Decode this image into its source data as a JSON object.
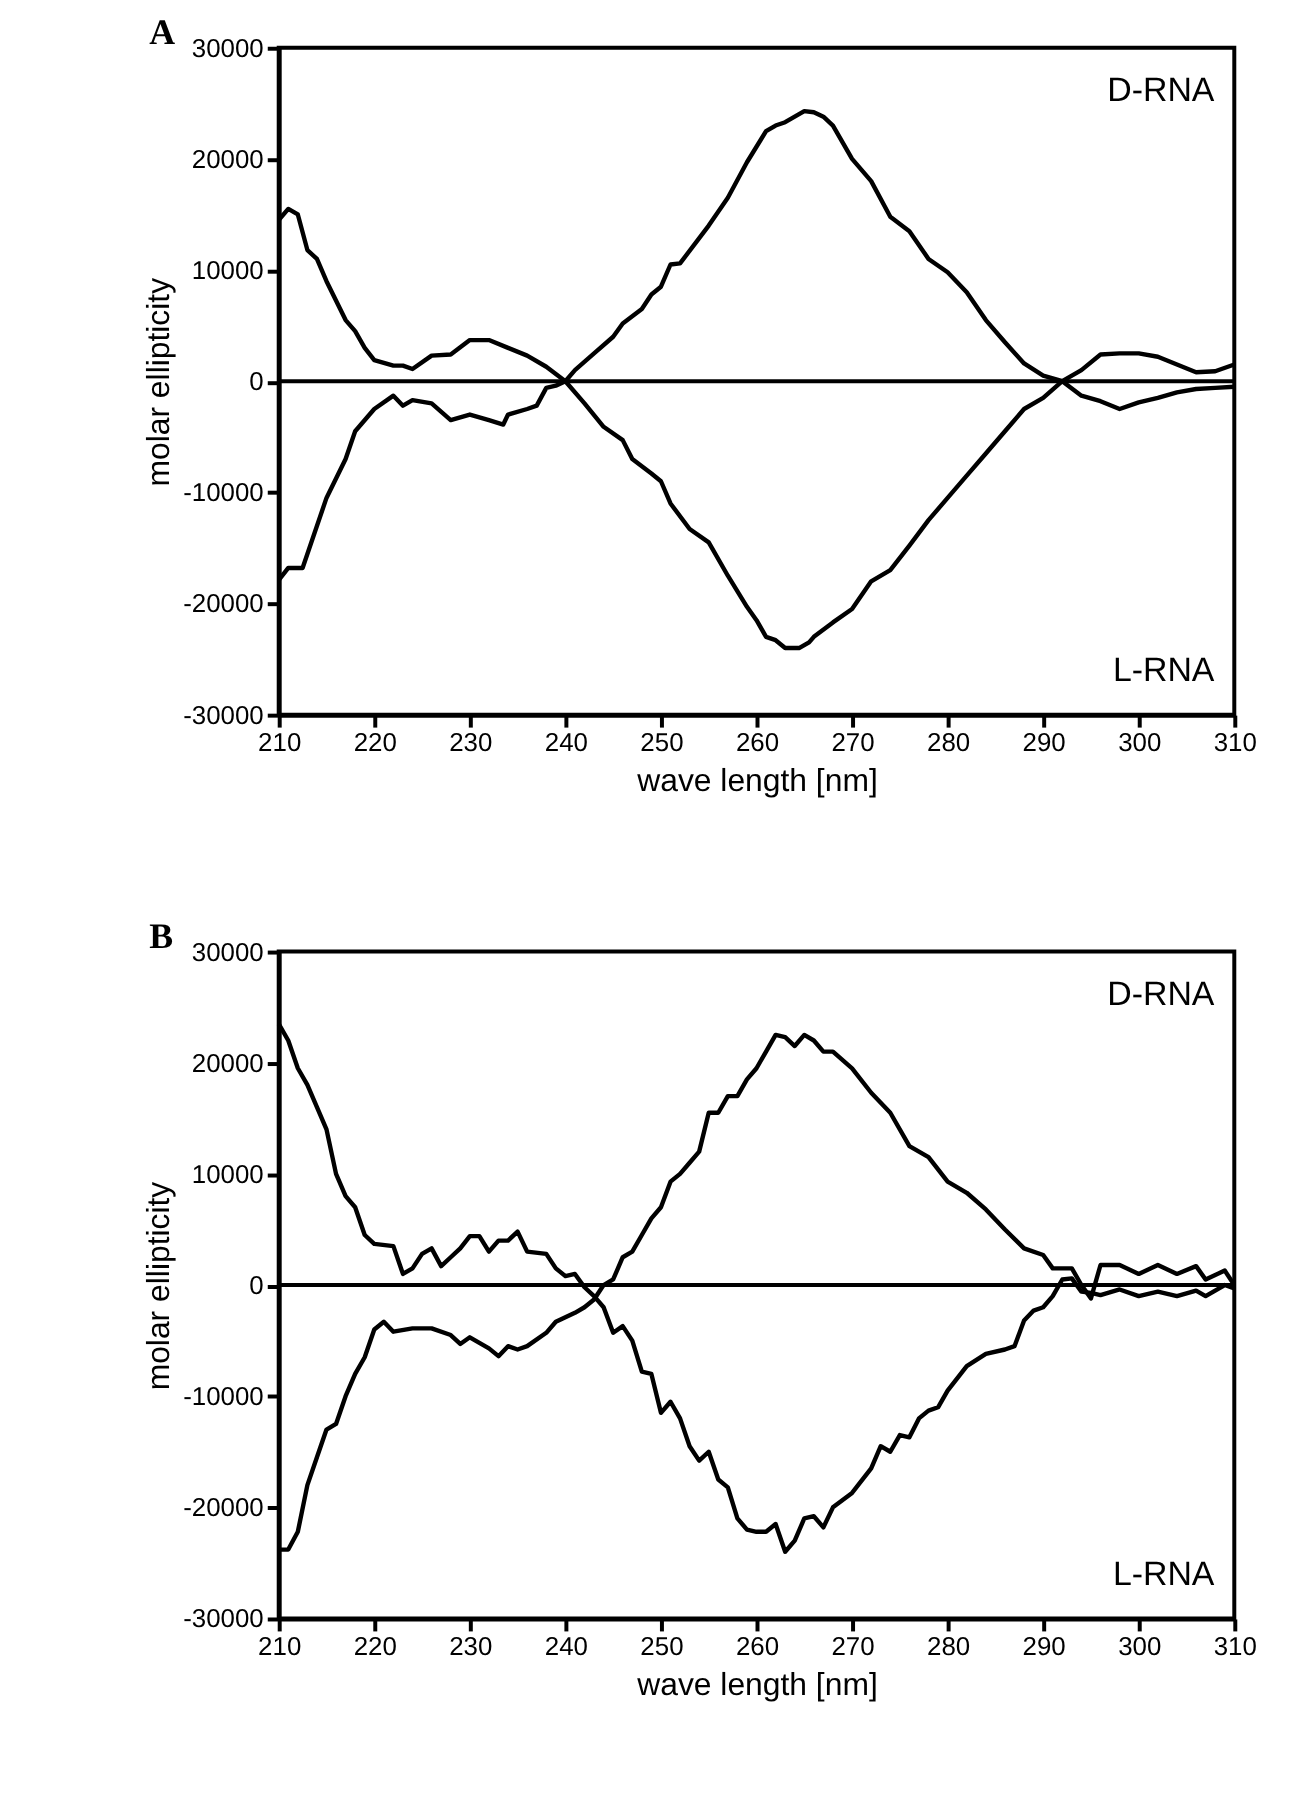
{
  "chart_data": [
    {
      "type": "line",
      "title": "A",
      "xlabel": "wave length [nm]",
      "ylabel": "molar ellipticity",
      "xlim": [
        210,
        310
      ],
      "xticks": [
        210,
        220,
        230,
        240,
        250,
        260,
        270,
        280,
        290,
        300,
        310
      ],
      "ylim": [
        -30000,
        30000
      ],
      "yticks": [
        -30000,
        -20000,
        -10000,
        0,
        10000,
        20000,
        30000
      ],
      "grid": false,
      "legend": false,
      "marker": "none",
      "line_style": "solid",
      "ref_lines": [
        {
          "axis": "y",
          "value": 0,
          "color": "#000000"
        }
      ],
      "annotations": [
        "D-RNA",
        "L-RNA"
      ],
      "series": [
        {
          "color": "#000000",
          "x": [
            210,
            211,
            212.5,
            215,
            217,
            218,
            220,
            222,
            223,
            224,
            226,
            228,
            230,
            232,
            233.5,
            234,
            236,
            237,
            238,
            239,
            240,
            241,
            243,
            245,
            246,
            248,
            249,
            250,
            251,
            252,
            255,
            257,
            259,
            261,
            262,
            263,
            265,
            266,
            267,
            268,
            270,
            272,
            274,
            276,
            278,
            280,
            282,
            284,
            286,
            288,
            290,
            292,
            294,
            296,
            298,
            300,
            302,
            304,
            306,
            308,
            310
          ],
          "values": [
            -17900,
            -16800,
            -16800,
            -10500,
            -7000,
            -4500,
            -2500,
            -1300,
            -2200,
            -1700,
            -2000,
            -3500,
            -3000,
            -3500,
            -3900,
            -3000,
            -2500,
            -2200,
            -600,
            -400,
            0,
            1000,
            2500,
            4000,
            5200,
            6500,
            7800,
            8500,
            10500,
            10600,
            14000,
            16500,
            19700,
            22500,
            23000,
            23300,
            24300,
            24200,
            23800,
            23000,
            20000,
            18000,
            14800,
            13500,
            11000,
            9800,
            8000,
            5500,
            3500,
            1600,
            500,
            0,
            -1300,
            -1800,
            -2500,
            -1900,
            -1500,
            -1000,
            -700,
            -600,
            -500
          ]
        },
        {
          "color": "#000000",
          "x": [
            210,
            211,
            212,
            213,
            214,
            215,
            217,
            218,
            219,
            220,
            222,
            223,
            224,
            226,
            228,
            230,
            232,
            234,
            236,
            238,
            240,
            242,
            244,
            246,
            247,
            249,
            250,
            251,
            253,
            255,
            257,
            259,
            260,
            261,
            262,
            263,
            264.5,
            265.5,
            266,
            268,
            270,
            272,
            274,
            276,
            278,
            280,
            282,
            284,
            286,
            288,
            290,
            292,
            294,
            296,
            298,
            300,
            302,
            304,
            306,
            308,
            310
          ],
          "values": [
            14500,
            15500,
            15000,
            11800,
            11000,
            9000,
            5500,
            4500,
            3000,
            1900,
            1400,
            1400,
            1100,
            2300,
            2400,
            3700,
            3700,
            3000,
            2300,
            1300,
            0,
            -2000,
            -4100,
            -5300,
            -7000,
            -8300,
            -9000,
            -11000,
            -13300,
            -14500,
            -17500,
            -20300,
            -21500,
            -23000,
            -23300,
            -24000,
            -24000,
            -23500,
            -23000,
            -21700,
            -20500,
            -18000,
            -17000,
            -14800,
            -12500,
            -10500,
            -8500,
            -6500,
            -4500,
            -2500,
            -1500,
            0,
            1000,
            2400,
            2500,
            2500,
            2200,
            1500,
            800,
            900,
            1500
          ]
        }
      ]
    },
    {
      "type": "line",
      "title": "B",
      "xlabel": "wave length [nm]",
      "ylabel": "molar ellipticity",
      "xlim": [
        210,
        310
      ],
      "xticks": [
        210,
        220,
        230,
        240,
        250,
        260,
        270,
        280,
        290,
        300,
        310
      ],
      "ylim": [
        -30000,
        30000
      ],
      "yticks": [
        -30000,
        -20000,
        -10000,
        0,
        10000,
        20000,
        30000
      ],
      "grid": false,
      "legend": false,
      "marker": "none",
      "line_style": "solid",
      "ref_lines": [
        {
          "axis": "y",
          "value": 0,
          "color": "#000000"
        }
      ],
      "annotations": [
        "D-RNA",
        "L-RNA"
      ],
      "series": [
        {
          "color": "#000000",
          "x": [
            210,
            211,
            212,
            213,
            214,
            215,
            216,
            217,
            218,
            219,
            220,
            221,
            222,
            224,
            226,
            228,
            229,
            230,
            232,
            233,
            234,
            235,
            236,
            238,
            239,
            241,
            242,
            243,
            244,
            245,
            246,
            247,
            248,
            249,
            250,
            251,
            252,
            253,
            254,
            255,
            256,
            257,
            258,
            259,
            260,
            261,
            262,
            263,
            264,
            265,
            266,
            267,
            268,
            270,
            272,
            274,
            276,
            278,
            280,
            282,
            284,
            286,
            288,
            290,
            291,
            293,
            294,
            295,
            296,
            298,
            300,
            302,
            304,
            306,
            307,
            309,
            310
          ],
          "values": [
            -23800,
            -23800,
            -22200,
            -18000,
            -15500,
            -13000,
            -12500,
            -10000,
            -8000,
            -6500,
            -4000,
            -3300,
            -4200,
            -3900,
            -3900,
            -4500,
            -5300,
            -4700,
            -5700,
            -6400,
            -5500,
            -5800,
            -5500,
            -4300,
            -3300,
            -2500,
            -2000,
            -1300,
            0,
            500,
            2500,
            3000,
            4500,
            6000,
            7000,
            9300,
            10000,
            11000,
            12000,
            15500,
            15500,
            17000,
            17000,
            18500,
            19500,
            21000,
            22500,
            22300,
            21500,
            22500,
            22000,
            21000,
            21000,
            19500,
            17300,
            15500,
            12500,
            11500,
            9300,
            8300,
            6800,
            5000,
            3300,
            2700,
            1500,
            1500,
            0,
            -1200,
            1800,
            1800,
            1000,
            1800,
            1000,
            1700,
            500,
            1300,
            0
          ]
        },
        {
          "color": "#000000",
          "x": [
            210,
            211,
            212,
            213,
            214,
            215,
            216,
            217,
            218,
            219,
            220,
            222,
            223,
            224,
            225,
            226,
            227,
            228,
            229,
            230,
            231,
            232,
            233,
            234,
            235,
            236,
            238,
            239,
            240,
            241,
            242,
            243,
            244,
            245,
            246,
            247,
            248,
            249,
            250,
            251,
            252,
            253,
            254,
            255,
            256,
            257,
            258,
            259,
            260,
            261,
            262,
            263,
            264,
            265,
            266,
            267,
            268,
            270,
            272,
            273,
            274,
            275,
            276,
            277,
            278,
            279,
            280,
            282,
            284,
            286,
            287,
            288,
            289,
            290,
            291,
            292,
            293,
            294,
            295,
            296,
            298,
            300,
            302,
            304,
            306,
            307,
            309,
            310
          ],
          "values": [
            23500,
            22000,
            19500,
            18000,
            16000,
            14000,
            10000,
            8000,
            7000,
            4500,
            3700,
            3500,
            1000,
            1500,
            2800,
            3300,
            1700,
            2500,
            3300,
            4400,
            4400,
            3000,
            4000,
            4000,
            4800,
            3000,
            2800,
            1500,
            800,
            1000,
            -200,
            -1000,
            -2000,
            -4300,
            -3700,
            -5000,
            -7800,
            -8000,
            -11500,
            -10500,
            -12000,
            -14500,
            -15800,
            -15000,
            -17500,
            -18200,
            -21000,
            -22000,
            -22200,
            -22200,
            -21500,
            -24000,
            -23000,
            -21000,
            -20800,
            -21800,
            -20000,
            -18700,
            -16500,
            -14500,
            -15000,
            -13500,
            -13700,
            -12000,
            -11300,
            -11000,
            -9500,
            -7300,
            -6200,
            -5800,
            -5500,
            -3200,
            -2300,
            -2000,
            -1000,
            500,
            600,
            -600,
            -700,
            -900,
            -400,
            -1000,
            -600,
            -1000,
            -500,
            -1000,
            0,
            -300
          ]
        }
      ]
    }
  ]
}
